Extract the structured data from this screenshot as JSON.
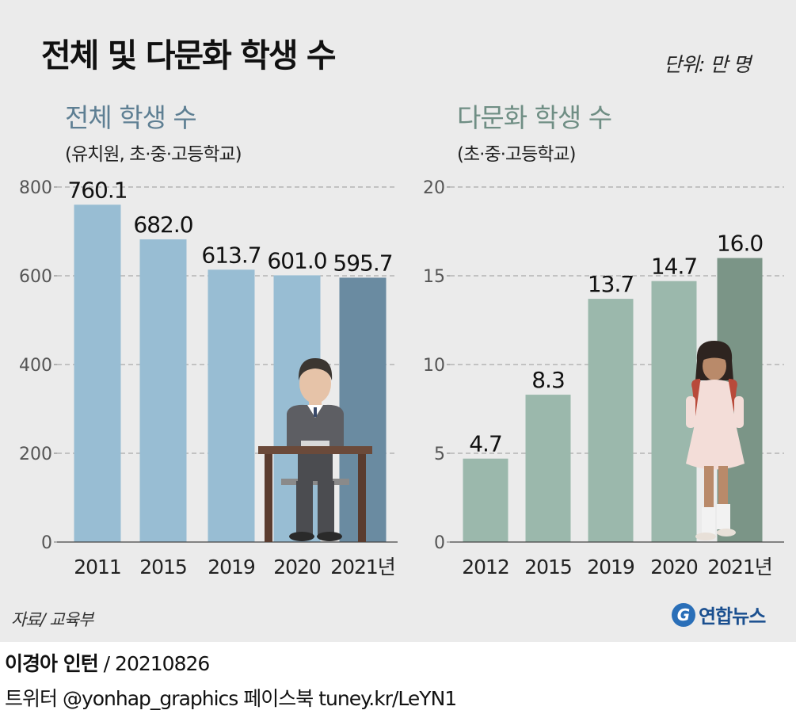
{
  "title": "전체 및 다문화 학생 수",
  "unit": "단위: 만 명",
  "source": "자료/ 교육부",
  "credit_name": "이경아 인턴",
  "credit_date": " / 20210826",
  "social": "트위터 @yonhap_graphics  페이스북 tuney.kr/LeYN1",
  "logo": {
    "text": "연합뉴스",
    "icon": "yonhap-logo-icon"
  },
  "colors": {
    "total_bar": "#98bdd3",
    "total_bar_last": "#6a8ba1",
    "multi_bar": "#9bb8ac",
    "multi_bar_last": "#7b9587",
    "background": "#ebebeb"
  },
  "chart_data": [
    {
      "type": "bar",
      "title": "전체 학생 수",
      "subtitle": "(유치원, 초·중·고등학교)",
      "categories": [
        "2011",
        "2015",
        "2019",
        "2020",
        "2021년"
      ],
      "values": [
        760.1,
        682.0,
        613.7,
        601.0,
        595.7
      ],
      "value_labels": [
        "760.1",
        "682.0",
        "613.7",
        "601.0",
        "595.7"
      ],
      "ylim": [
        0,
        800
      ],
      "yticks": [
        "0",
        "200",
        "400",
        "600",
        "800"
      ],
      "grid": true
    },
    {
      "type": "bar",
      "title": "다문화 학생 수",
      "subtitle": "(초·중·고등학교)",
      "categories": [
        "2012",
        "2015",
        "2019",
        "2020",
        "2021년"
      ],
      "values": [
        4.7,
        8.3,
        13.7,
        14.7,
        16.0
      ],
      "value_labels": [
        "4.7",
        "8.3",
        "13.7",
        "14.7",
        "16.0"
      ],
      "ylim": [
        0,
        20
      ],
      "yticks": [
        "0",
        "5",
        "10",
        "15",
        "20"
      ],
      "grid": true
    }
  ]
}
